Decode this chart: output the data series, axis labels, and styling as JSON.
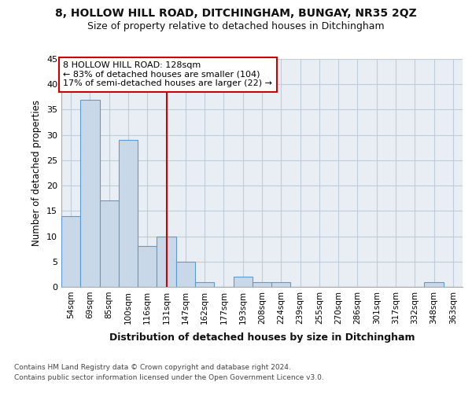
{
  "title1": "8, HOLLOW HILL ROAD, DITCHINGHAM, BUNGAY, NR35 2QZ",
  "title2": "Size of property relative to detached houses in Ditchingham",
  "xlabel": "Distribution of detached houses by size in Ditchingham",
  "ylabel": "Number of detached properties",
  "categories": [
    "54sqm",
    "69sqm",
    "85sqm",
    "100sqm",
    "116sqm",
    "131sqm",
    "147sqm",
    "162sqm",
    "177sqm",
    "193sqm",
    "208sqm",
    "224sqm",
    "239sqm",
    "255sqm",
    "270sqm",
    "286sqm",
    "301sqm",
    "317sqm",
    "332sqm",
    "348sqm",
    "363sqm"
  ],
  "values": [
    14,
    37,
    17,
    29,
    8,
    10,
    5,
    1,
    0,
    2,
    1,
    1,
    0,
    0,
    0,
    0,
    0,
    0,
    0,
    1,
    0
  ],
  "bar_color": "#c8d8e8",
  "bar_edge_color": "#5b9bd5",
  "vline_color": "#cc0000",
  "vline_x": 5.0,
  "annotation_text1": "8 HOLLOW HILL ROAD: 128sqm",
  "annotation_text2": "← 83% of detached houses are smaller (104)",
  "annotation_text3": "17% of semi-detached houses are larger (22) →",
  "annotation_box_color": "#ffffff",
  "annotation_box_edge": "#cc0000",
  "ylim": [
    0,
    45
  ],
  "yticks": [
    0,
    5,
    10,
    15,
    20,
    25,
    30,
    35,
    40,
    45
  ],
  "figure_bg": "#ffffff",
  "plot_bg_color": "#e8eef4",
  "footer1": "Contains HM Land Registry data © Crown copyright and database right 2024.",
  "footer2": "Contains public sector information licensed under the Open Government Licence v3.0."
}
